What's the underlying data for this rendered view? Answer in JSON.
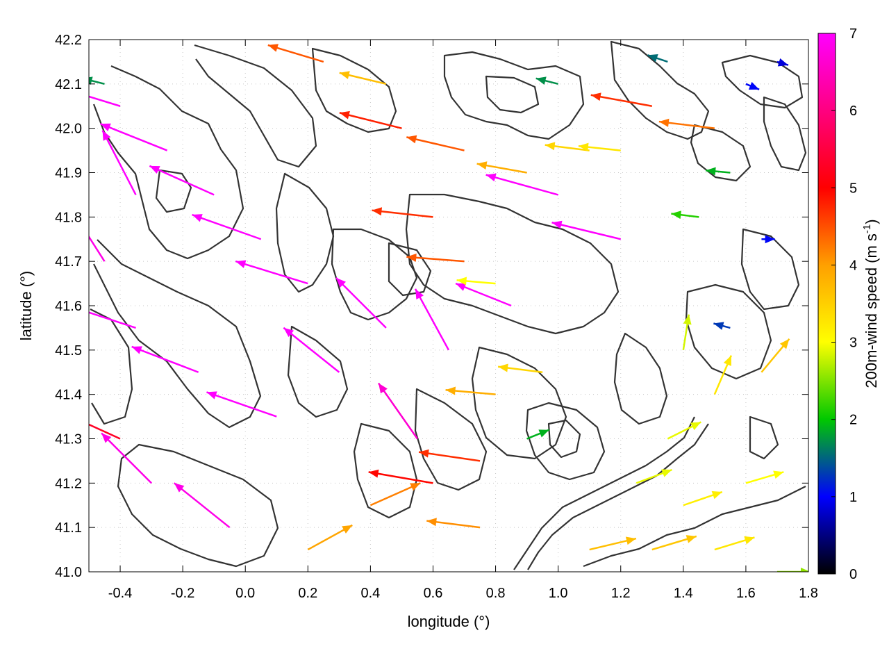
{
  "chart_data": {
    "type": "vector-field",
    "xlabel": "longitude (°)",
    "ylabel": "latitude (°)",
    "xlim": [
      -0.5,
      1.8
    ],
    "ylim": [
      41.0,
      42.2
    ],
    "x_ticks": [
      "-0.4",
      "-0.2",
      "0.0",
      "0.2",
      "0.4",
      "0.6",
      "0.8",
      "1.0",
      "1.2",
      "1.4",
      "1.6",
      "1.8"
    ],
    "x_tick_values": [
      -0.4,
      -0.2,
      0.0,
      0.2,
      0.4,
      0.6,
      0.8,
      1.0,
      1.2,
      1.4,
      1.6,
      1.8
    ],
    "y_ticks": [
      "41.0",
      "41.1",
      "41.2",
      "41.3",
      "41.4",
      "41.5",
      "41.6",
      "41.7",
      "41.8",
      "41.9",
      "42.0",
      "42.1",
      "42.2"
    ],
    "y_tick_values": [
      41.0,
      41.1,
      41.2,
      41.3,
      41.4,
      41.5,
      41.6,
      41.7,
      41.8,
      41.9,
      42.0,
      42.1,
      42.2
    ],
    "colorbar": {
      "label_prefix": "200m-wind speed (m s",
      "label_exponent": "-1",
      "label_suffix": ")",
      "range": [
        0,
        7
      ],
      "ticks": [
        "0",
        "1",
        "2",
        "3",
        "4",
        "5",
        "6",
        "7"
      ],
      "tick_values": [
        0,
        1,
        2,
        3,
        4,
        5,
        6,
        7
      ],
      "colors": [
        "#000000",
        "#0000ff",
        "#00c800",
        "#ffff00",
        "#ffa000",
        "#ff0000",
        "#ff00ff"
      ]
    },
    "grid": true,
    "legend": "none",
    "vectors": [
      {
        "lon": -0.4,
        "lat": 42.05,
        "u": -6.5,
        "v": 2.0,
        "speed": 7.0
      },
      {
        "lon": -0.25,
        "lat": 41.95,
        "u": -6.0,
        "v": 2.4,
        "speed": 7.0
      },
      {
        "lon": -0.1,
        "lat": 41.85,
        "u": -5.8,
        "v": 2.6,
        "speed": 7.0
      },
      {
        "lon": 0.05,
        "lat": 41.75,
        "u": -6.2,
        "v": 2.2,
        "speed": 7.0
      },
      {
        "lon": 0.2,
        "lat": 41.65,
        "u": -6.5,
        "v": 2.0,
        "speed": 7.0
      },
      {
        "lon": -0.35,
        "lat": 41.55,
        "u": -6.4,
        "v": 2.1,
        "speed": 7.0
      },
      {
        "lon": -0.15,
        "lat": 41.45,
        "u": -6.0,
        "v": 2.3,
        "speed": 7.0
      },
      {
        "lon": 0.1,
        "lat": 41.35,
        "u": -6.3,
        "v": 2.2,
        "speed": 7.0
      },
      {
        "lon": 0.3,
        "lat": 41.45,
        "u": -5.0,
        "v": 4.0,
        "speed": 7.0
      },
      {
        "lon": 0.45,
        "lat": 41.55,
        "u": -4.5,
        "v": 4.5,
        "speed": 7.0
      },
      {
        "lon": 0.55,
        "lat": 41.3,
        "u": -3.5,
        "v": 5.0,
        "speed": 6.8
      },
      {
        "lon": 0.65,
        "lat": 41.5,
        "u": -3.0,
        "v": 5.5,
        "speed": 7.0
      },
      {
        "lon": 0.85,
        "lat": 41.6,
        "u": -5.0,
        "v": 2.0,
        "speed": 7.0
      },
      {
        "lon": 1.0,
        "lat": 41.85,
        "u": -6.5,
        "v": 1.8,
        "speed": 7.0
      },
      {
        "lon": 1.2,
        "lat": 41.75,
        "u": -6.2,
        "v": 1.5,
        "speed": 7.0
      },
      {
        "lon": 0.5,
        "lat": 42.0,
        "u": -5.6,
        "v": 1.4,
        "speed": 5.6
      },
      {
        "lon": 0.7,
        "lat": 41.95,
        "u": -5.2,
        "v": 1.2,
        "speed": 5.2
      },
      {
        "lon": 0.9,
        "lat": 41.9,
        "u": -4.5,
        "v": 0.8,
        "speed": 4.5
      },
      {
        "lon": 1.1,
        "lat": 41.95,
        "u": -4.0,
        "v": 0.5,
        "speed": 4.0
      },
      {
        "lon": 1.3,
        "lat": 42.05,
        "u": -5.5,
        "v": 1.0,
        "speed": 5.5
      },
      {
        "lon": 1.5,
        "lat": 42.0,
        "u": -5.0,
        "v": 0.6,
        "speed": 5.0
      },
      {
        "lon": 0.6,
        "lat": 41.8,
        "u": -5.5,
        "v": 0.6,
        "speed": 5.5
      },
      {
        "lon": 0.7,
        "lat": 41.7,
        "u": -5.2,
        "v": 0.4,
        "speed": 5.2
      },
      {
        "lon": 0.8,
        "lat": 41.65,
        "u": -3.5,
        "v": 0.3,
        "speed": 3.5
      },
      {
        "lon": 1.0,
        "lat": 42.1,
        "u": -2.0,
        "v": 0.5,
        "speed": 2.0
      },
      {
        "lon": 1.35,
        "lat": 42.15,
        "u": -1.8,
        "v": 0.6,
        "speed": 1.8
      },
      {
        "lon": 1.6,
        "lat": 42.1,
        "u": 1.2,
        "v": -0.5,
        "speed": 1.2
      },
      {
        "lon": 1.7,
        "lat": 42.15,
        "u": 1.0,
        "v": -0.3,
        "speed": 1.0
      },
      {
        "lon": 1.65,
        "lat": 41.75,
        "u": 1.2,
        "v": 0.0,
        "speed": 1.2
      },
      {
        "lon": 1.55,
        "lat": 41.55,
        "u": -1.5,
        "v": 0.4,
        "speed": 1.5
      },
      {
        "lon": 1.4,
        "lat": 41.5,
        "u": 0.5,
        "v": 3.2,
        "speed": 3.3
      },
      {
        "lon": 1.5,
        "lat": 41.4,
        "u": 1.5,
        "v": 3.5,
        "speed": 3.8
      },
      {
        "lon": 1.65,
        "lat": 41.45,
        "u": 2.5,
        "v": 3.0,
        "speed": 4.2
      },
      {
        "lon": 1.35,
        "lat": 41.3,
        "u": 3.0,
        "v": 1.5,
        "speed": 3.4
      },
      {
        "lon": 1.25,
        "lat": 41.2,
        "u": 3.2,
        "v": 1.2,
        "speed": 3.4
      },
      {
        "lon": 1.4,
        "lat": 41.15,
        "u": 3.5,
        "v": 1.2,
        "speed": 3.7
      },
      {
        "lon": 1.6,
        "lat": 41.2,
        "u": 3.4,
        "v": 1.0,
        "speed": 3.5
      },
      {
        "lon": 1.5,
        "lat": 41.05,
        "u": 3.6,
        "v": 1.1,
        "speed": 3.8
      },
      {
        "lon": 1.3,
        "lat": 41.05,
        "u": 4.0,
        "v": 1.2,
        "speed": 4.2
      },
      {
        "lon": 1.1,
        "lat": 41.05,
        "u": 4.2,
        "v": 1.0,
        "speed": 4.3
      },
      {
        "lon": 1.7,
        "lat": 41.0,
        "u": 3.0,
        "v": 0.0,
        "speed": 3.0
      },
      {
        "lon": 0.9,
        "lat": 41.3,
        "u": 2.0,
        "v": 0.8,
        "speed": 2.2
      },
      {
        "lon": 0.8,
        "lat": 41.4,
        "u": -4.5,
        "v": 0.4,
        "speed": 4.5
      },
      {
        "lon": 0.95,
        "lat": 41.45,
        "u": -4.0,
        "v": 0.5,
        "speed": 4.0
      },
      {
        "lon": 0.75,
        "lat": 41.25,
        "u": -5.5,
        "v": 0.8,
        "speed": 5.5
      },
      {
        "lon": 0.6,
        "lat": 41.2,
        "u": -5.8,
        "v": 1.0,
        "speed": 5.8
      },
      {
        "lon": 0.4,
        "lat": 41.15,
        "u": 4.5,
        "v": 2.0,
        "speed": 4.9
      },
      {
        "lon": 0.2,
        "lat": 41.05,
        "u": 4.0,
        "v": 2.2,
        "speed": 4.6
      },
      {
        "lon": -0.05,
        "lat": 41.1,
        "u": -5.0,
        "v": 4.0,
        "speed": 6.9
      },
      {
        "lon": -0.3,
        "lat": 41.2,
        "u": -4.5,
        "v": 4.5,
        "speed": 6.9
      },
      {
        "lon": -0.4,
        "lat": 41.3,
        "u": -5.5,
        "v": 2.5,
        "speed": 6.0
      },
      {
        "lon": -0.45,
        "lat": 41.7,
        "u": -3.5,
        "v": 5.5,
        "speed": 6.9
      },
      {
        "lon": -0.35,
        "lat": 41.85,
        "u": -3.0,
        "v": 5.8,
        "speed": 7.0
      },
      {
        "lon": -0.45,
        "lat": 42.1,
        "u": -2.0,
        "v": 0.5,
        "speed": 2.0
      },
      {
        "lon": 0.25,
        "lat": 42.15,
        "u": -5.0,
        "v": 1.5,
        "speed": 5.2
      },
      {
        "lon": 0.45,
        "lat": 42.1,
        "u": -4.2,
        "v": 1.0,
        "speed": 4.3
      },
      {
        "lon": 1.2,
        "lat": 41.95,
        "u": -3.8,
        "v": 0.4,
        "speed": 3.8
      },
      {
        "lon": 1.45,
        "lat": 41.8,
        "u": -2.5,
        "v": 0.3,
        "speed": 2.5
      },
      {
        "lon": 1.55,
        "lat": 41.9,
        "u": -2.2,
        "v": 0.2,
        "speed": 2.2
      },
      {
        "lon": 0.75,
        "lat": 41.1,
        "u": -4.8,
        "v": 0.6,
        "speed": 4.8
      }
    ]
  }
}
